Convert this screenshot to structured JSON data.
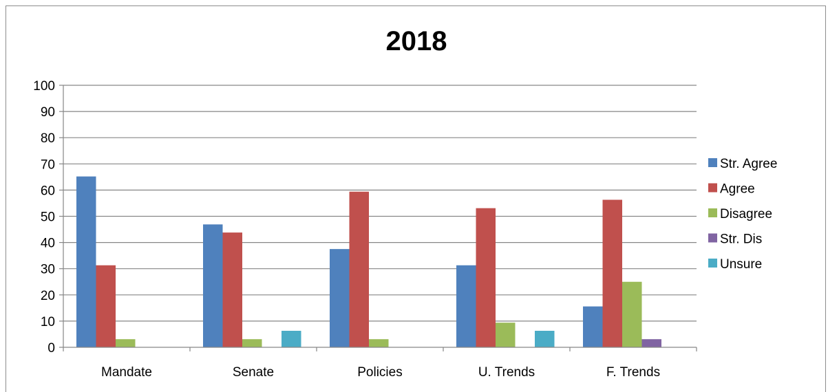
{
  "chart_data": {
    "type": "bar",
    "title": "2018",
    "xlabel": "",
    "ylabel": "",
    "categories": [
      "Mandate",
      "Senate",
      "Policies",
      "U. Trends",
      "F. Trends"
    ],
    "ylim": [
      0,
      100
    ],
    "yticks": [
      0,
      10,
      20,
      30,
      40,
      50,
      60,
      70,
      80,
      90,
      100
    ],
    "grid": true,
    "legend_position": "right",
    "series": [
      {
        "name": "Str. Agree",
        "color": "#4f81bd",
        "values": [
          65.2,
          46.9,
          37.5,
          31.3,
          15.6
        ]
      },
      {
        "name": "Agree",
        "color": "#c0504d",
        "values": [
          31.3,
          43.8,
          59.4,
          53.1,
          56.3
        ]
      },
      {
        "name": "Disagree",
        "color": "#9bbb59",
        "values": [
          3.1,
          3.1,
          3.1,
          9.4,
          25.0
        ]
      },
      {
        "name": "Str. Dis",
        "color": "#8064a2",
        "values": [
          0,
          0,
          0,
          0,
          3.1
        ]
      },
      {
        "name": "Unsure",
        "color": "#4bacc6",
        "values": [
          0,
          6.3,
          0,
          6.3,
          0
        ]
      }
    ]
  }
}
